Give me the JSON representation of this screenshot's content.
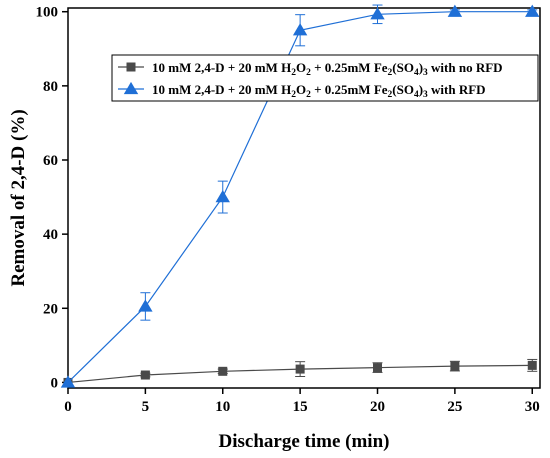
{
  "chart_data": {
    "type": "line",
    "xlabel": "Discharge time (min)",
    "ylabel": "Removal of 2,4-D (%)",
    "xlim": [
      0,
      30.5
    ],
    "ylim": [
      -1.5,
      101
    ],
    "x": [
      0,
      5,
      10,
      15,
      20,
      25,
      30
    ],
    "x_ticks": [
      0,
      5,
      10,
      15,
      20,
      25,
      30
    ],
    "y_ticks": [
      0,
      20,
      40,
      60,
      80,
      100
    ],
    "grid": false,
    "legend_position": "top-right",
    "series": [
      {
        "name": "10 mM 2,4-D + 20 mM H2O2 + 0.25mM Fe2(SO4)3 with no RFD",
        "legend_parts": [
          {
            "t": "10 mM 2,4-D + 20 mM H"
          },
          {
            "t": "2",
            "sub": true
          },
          {
            "t": "O"
          },
          {
            "t": "2",
            "sub": true
          },
          {
            "t": " + 0.25mM Fe"
          },
          {
            "t": "2",
            "sub": true
          },
          {
            "t": "(SO"
          },
          {
            "t": "4",
            "sub": true
          },
          {
            "t": ")"
          },
          {
            "t": "3",
            "sub": true
          },
          {
            "t": " with no RFD"
          }
        ],
        "marker": "square",
        "color": "#4a4a4a",
        "values": [
          0,
          2,
          3,
          3.6,
          4,
          4.4,
          4.6
        ],
        "errors": [
          0.3,
          0.5,
          0.6,
          2,
          1.3,
          1.3,
          1.6
        ]
      },
      {
        "name": "10 mM 2,4-D + 20 mM H2O2 + 0.25mM Fe2(SO4)3 with RFD",
        "legend_parts": [
          {
            "t": "10 mM 2,4-D + 20 mM H"
          },
          {
            "t": "2",
            "sub": true
          },
          {
            "t": "O"
          },
          {
            "t": "2",
            "sub": true
          },
          {
            "t": " + 0.25mM Fe"
          },
          {
            "t": "2",
            "sub": true
          },
          {
            "t": "(SO"
          },
          {
            "t": "4",
            "sub": true
          },
          {
            "t": ")"
          },
          {
            "t": "3",
            "sub": true
          },
          {
            "t": " with RFD"
          }
        ],
        "marker": "triangle",
        "color": "#1f6fd6",
        "values": [
          0,
          20.5,
          50,
          95,
          99.3,
          100,
          100
        ],
        "errors": [
          0.3,
          3.7,
          4.3,
          4.2,
          2.5,
          0.5,
          0.5
        ]
      }
    ]
  }
}
